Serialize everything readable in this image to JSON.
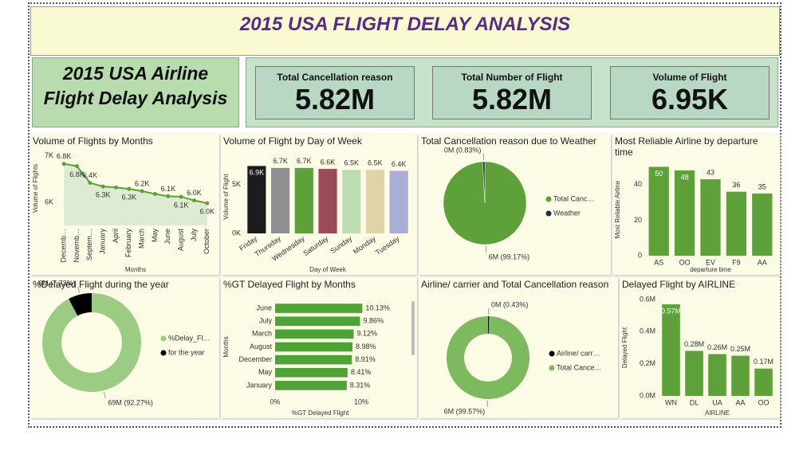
{
  "header": {
    "title": "2015 USA FLIGHT DELAY ANALYSIS",
    "subtitle": [
      "2015 USA Airline",
      "Flight Delay Analysis"
    ]
  },
  "cards": [
    {
      "label": "Total Cancellation reason",
      "value": "5.82M"
    },
    {
      "label": "Total Number of Flight",
      "value": "5.82M"
    },
    {
      "label": "Volume of Flight",
      "value": "6.95K"
    }
  ],
  "chart_data": [
    {
      "type": "line",
      "title": "Volume of Flights by Months",
      "x_label": "Months",
      "y_label": "Volume of Flights",
      "categories": [
        "Decemb…",
        "Novemb…",
        "Septem…",
        "January",
        "April",
        "February",
        "March",
        "May",
        "June",
        "August",
        "July",
        "October"
      ],
      "values": [
        6830,
        6780,
        6420,
        6340,
        6320,
        6290,
        6240,
        6180,
        6130,
        6120,
        6040,
        5980
      ],
      "value_labels": [
        "6.8K",
        "6.8K",
        "6.4K",
        "6.3K",
        null,
        "6.3K",
        "6.2K",
        null,
        "6.1K",
        "6.1K",
        "6.0K",
        "6.0K"
      ],
      "color": "#5ea03a",
      "area_color": "#dcebd2",
      "ylim": [
        5500,
        7100
      ],
      "yticks": [
        {
          "value": 6000,
          "label": "6K"
        },
        {
          "value": 7000,
          "label": "7K"
        }
      ]
    },
    {
      "type": "bar",
      "title": "Volume of Flight by Day of Week",
      "x_label": "Day of Week",
      "y_label": "Volume of Flight",
      "categories": [
        "Friday",
        "Thursday",
        "Wednesday",
        "Saturday",
        "Sunday",
        "Monday",
        "Tuesday"
      ],
      "values": [
        6900,
        6700,
        6700,
        6600,
        6500,
        6500,
        6400
      ],
      "value_labels": [
        "6.9K",
        "6.7K",
        "6.7K",
        "6.6K",
        "6.5K",
        "6.5K",
        "6.4K"
      ],
      "colors": [
        "#1c1c1c",
        "#8f8f8f",
        "#5ea03a",
        "#9b4a57",
        "#bedcb1",
        "#dfd4a8",
        "#a9aed4"
      ],
      "ylim": [
        0,
        7500
      ],
      "yticks": [
        {
          "value": 0,
          "label": "0K"
        },
        {
          "value": 5000,
          "label": "5K"
        }
      ]
    },
    {
      "type": "pie",
      "title": "Total Cancellation reason due to Weather",
      "categories": [
        "Total Canc…",
        "Weather"
      ],
      "values": [
        99.17,
        0.83
      ],
      "value_labels": [
        "6M (99.17%)",
        "0M (0.83%)"
      ],
      "colors": [
        "#5ea03a",
        "#1f2d4d"
      ]
    },
    {
      "type": "bar",
      "title": "Most Reliable Airline by departure time",
      "x_label": "departure time",
      "y_label": "Most Reliable Airline",
      "categories": [
        "AS",
        "OO",
        "EV",
        "F9",
        "AA"
      ],
      "values": [
        50,
        48,
        43,
        36,
        35
      ],
      "color": "#5ea03a",
      "ylim": [
        0,
        52
      ],
      "yticks": [
        0,
        20,
        40
      ]
    },
    {
      "type": "donut",
      "title": "%Delayed Flight during the year",
      "categories": [
        "%Delay_Fl…",
        "for the year"
      ],
      "values": [
        92.27,
        7.73
      ],
      "value_labels": [
        "69M (92.27%)",
        "6M (7.73%)"
      ],
      "colors": [
        "#9ccc84",
        "#000000"
      ]
    },
    {
      "type": "hbar",
      "title": "%GT Delayed Flight by Months",
      "x_label": "%GT Delayed Flight",
      "y_label": "Months",
      "categories": [
        "June",
        "July",
        "March",
        "August",
        "December",
        "May",
        "January"
      ],
      "values": [
        10.13,
        9.86,
        9.12,
        8.98,
        8.91,
        8.41,
        8.31
      ],
      "value_labels": [
        "10.13%",
        "9.86%",
        "9.12%",
        "8.98%",
        "8.91%",
        "8.41%",
        "8.31%"
      ],
      "color": "#4ea236",
      "xlim": [
        0,
        10.5
      ],
      "xticks": [
        {
          "value": 0,
          "label": "0%"
        },
        {
          "value": 10,
          "label": "10%"
        }
      ]
    },
    {
      "type": "donut",
      "title": "Airline/ carrier and Total Cancellation reason",
      "categories": [
        "Airline/ carr…",
        "Total Cance…"
      ],
      "values": [
        0.43,
        99.57
      ],
      "value_labels": [
        "0M (0.43%)",
        "6M (99.57%)"
      ],
      "colors": [
        "#000000",
        "#7cb95f"
      ]
    },
    {
      "type": "bar",
      "title": "Delayed Flight by AIRLINE",
      "x_label": "AIRLINE",
      "y_label": "Delayed Flight",
      "categories": [
        "WN",
        "DL",
        "UA",
        "AA",
        "OO"
      ],
      "values": [
        570000,
        280000,
        260000,
        250000,
        170000
      ],
      "value_labels": [
        "0.57M",
        "0.28M",
        "0.26M",
        "0.25M",
        "0.17M"
      ],
      "color": "#5ea03a",
      "ylim": [
        0,
        600000
      ],
      "yticks": [
        {
          "value": 0,
          "label": "0.0M"
        },
        {
          "value": 200000,
          "label": "0.2M"
        },
        {
          "value": 400000,
          "label": "0.4M"
        },
        {
          "value": 600000,
          "label": "0.6M"
        }
      ]
    }
  ]
}
